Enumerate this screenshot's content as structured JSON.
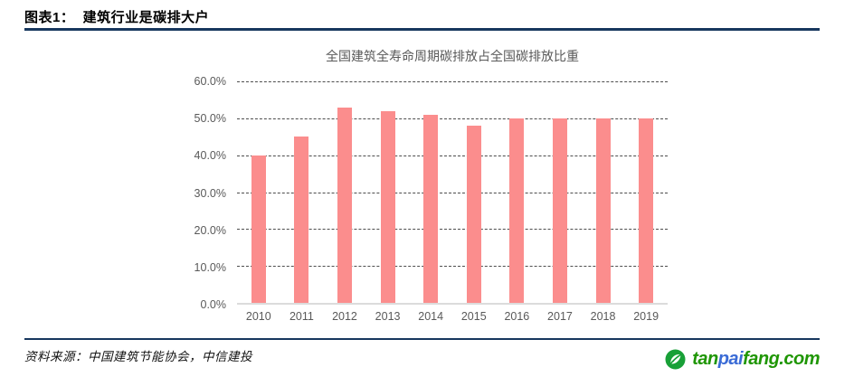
{
  "figure": {
    "header_title": "图表1：  建筑行业是碳排大户",
    "source_label": "资料来源：中国建筑节能协会，中信建投",
    "accent_color": "#17375e"
  },
  "chart_data": {
    "type": "bar",
    "title": "全国建筑全寿命周期碳排放占全国碳排放比重",
    "categories": [
      "2010",
      "2011",
      "2012",
      "2013",
      "2014",
      "2015",
      "2016",
      "2017",
      "2018",
      "2019"
    ],
    "values": [
      40,
      45,
      53,
      52,
      51,
      48,
      50,
      50,
      50,
      50
    ],
    "value_unit": "percent",
    "ylim": [
      0,
      60
    ],
    "ytick_labels": [
      "60.0%",
      "50.0%",
      "40.0%",
      "30.0%",
      "20.0%",
      "10.0%",
      "0.0%"
    ],
    "xlabel": "",
    "ylabel": "",
    "grid": "horizontal-dashed",
    "legend": "none",
    "bar_color": "#fb8d8d"
  },
  "logo": {
    "name": "tanpaifang-logo",
    "text_parts": [
      {
        "text": "tan",
        "color": "#1f9604"
      },
      {
        "text": "pai",
        "color": "#3a6bd6"
      },
      {
        "text": "fang.com",
        "color": "#1f9604"
      }
    ],
    "icon": "leaf-circle-icon",
    "icon_color": "#18a037"
  }
}
